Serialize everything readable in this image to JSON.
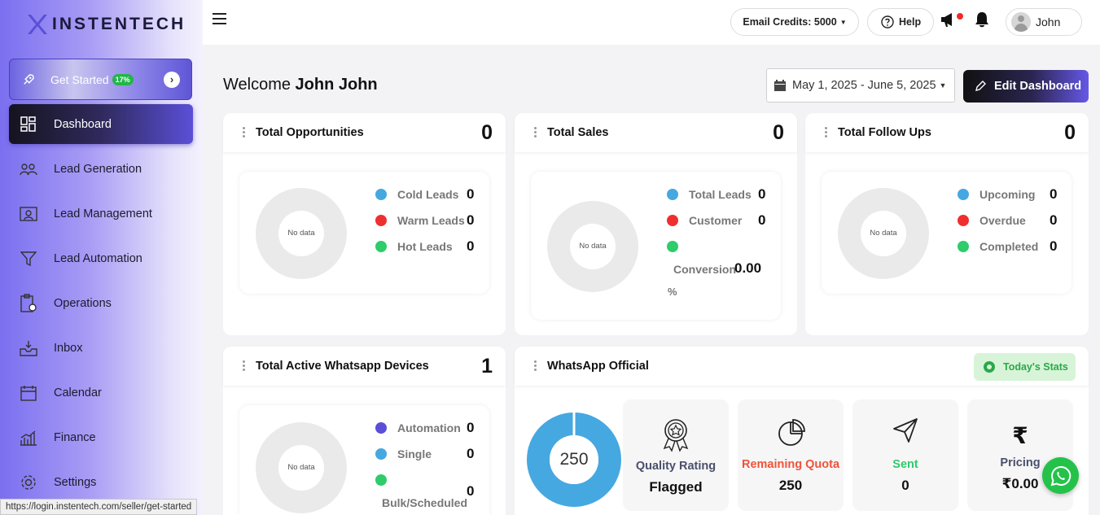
{
  "brand": {
    "name": "INSTENTECH"
  },
  "sidebar": {
    "get_started": {
      "label": "Get Started",
      "progress": "17%"
    },
    "items": [
      {
        "label": "Dashboard",
        "icon": "dashboard-grid-icon",
        "active": true
      },
      {
        "label": "Lead Generation",
        "icon": "users-group-icon"
      },
      {
        "label": "Lead Management",
        "icon": "contact-card-icon"
      },
      {
        "label": "Lead Automation",
        "icon": "funnel-icon"
      },
      {
        "label": "Operations",
        "icon": "clipboard-gear-icon"
      },
      {
        "label": "Inbox",
        "icon": "inbox-tray-icon"
      },
      {
        "label": "Calendar",
        "icon": "calendar-icon"
      },
      {
        "label": "Finance",
        "icon": "finance-chart-icon"
      },
      {
        "label": "Settings",
        "icon": "gear-icon"
      }
    ]
  },
  "topbar": {
    "email_credits": "Email Credits: 5000",
    "help": "Help",
    "user_name": "John"
  },
  "main": {
    "welcome_prefix": "Welcome ",
    "welcome_name": "John John",
    "date_range": "May 1, 2025 - June 5, 2025",
    "edit_dashboard": "Edit Dashboard"
  },
  "cards": {
    "opportunities": {
      "title": "Total Opportunities",
      "count": "0",
      "no_data": "No data",
      "legend": [
        {
          "label": "Cold Leads",
          "value": "0",
          "color": "#46a8e0"
        },
        {
          "label": "Warm Leads",
          "value": "0",
          "color": "#ef2f2f"
        },
        {
          "label": "Hot Leads",
          "value": "0",
          "color": "#2ecc6a"
        }
      ]
    },
    "sales": {
      "title": "Total Sales",
      "count": "0",
      "no_data": "No data",
      "legend": [
        {
          "label": "Total Leads",
          "value": "0",
          "color": "#46a8e0"
        },
        {
          "label": "Customer",
          "value": "0",
          "color": "#ef2f2f"
        },
        {
          "label": "Conversion",
          "value": "0.00",
          "suffix": "%",
          "color": "#2ecc6a"
        }
      ]
    },
    "followups": {
      "title": "Total Follow Ups",
      "count": "0",
      "no_data": "No data",
      "legend": [
        {
          "label": "Upcoming",
          "value": "0",
          "color": "#46a8e0"
        },
        {
          "label": "Overdue",
          "value": "0",
          "color": "#ef2f2f"
        },
        {
          "label": "Completed",
          "value": "0",
          "color": "#2ecc6a"
        }
      ]
    },
    "whatsapp_devices": {
      "title": "Total Active Whatsapp Devices",
      "count": "1",
      "no_data": "No data",
      "legend": [
        {
          "label": "Automation",
          "value": "0",
          "color": "#5b4fd8"
        },
        {
          "label": "Single",
          "value": "0",
          "color": "#46a8e0"
        },
        {
          "label": "Bulk/Scheduled",
          "value": "0",
          "color": "#2ecc6a"
        }
      ]
    },
    "whatsapp_official": {
      "title": "WhatsApp Official",
      "today_stats": "Today's Stats",
      "donut_value": "250",
      "stats": [
        {
          "label": "Quality Rating",
          "value": "Flagged",
          "icon": "award-badge-icon",
          "color": "#4a4f6a"
        },
        {
          "label": "Remaining Quota",
          "value": "250",
          "icon": "pie-chart-icon",
          "color": "#f0523a"
        },
        {
          "label": "Sent",
          "value": "0",
          "icon": "send-icon",
          "color": "#2ecc6a"
        },
        {
          "label": "Pricing",
          "value": "₹0.00",
          "icon": "rupee-icon",
          "color": "#4a4f6a"
        }
      ]
    }
  },
  "status_url": "https://login.instentech.com/seller/get-started"
}
